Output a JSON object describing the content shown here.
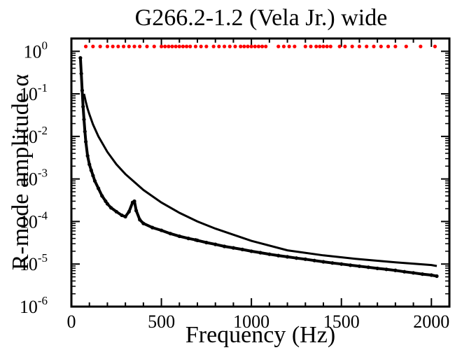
{
  "chart_data": {
    "type": "scatter",
    "title": "G266.2-1.2 (Vela Jr.) wide",
    "xlabel": "Frequency (Hz)",
    "ylabel": "R-mode amplitude α",
    "xlim": [
      0,
      2100
    ],
    "ylim": [
      1e-06,
      2
    ],
    "yscale": "log",
    "grid": false,
    "x_ticks": [
      0,
      500,
      1000,
      1500,
      2000
    ],
    "y_ticks": [
      {
        "value": 1e-06,
        "base": "10",
        "exp": "-6"
      },
      {
        "value": 1e-05,
        "base": "10",
        "exp": "-5"
      },
      {
        "value": 0.0001,
        "base": "10",
        "exp": "-4"
      },
      {
        "value": 0.001,
        "base": "10",
        "exp": "-3"
      },
      {
        "value": 0.01,
        "base": "10",
        "exp": "-2"
      },
      {
        "value": 0.1,
        "base": "10",
        "exp": "-1"
      },
      {
        "value": 1,
        "base": "10",
        "exp": "0"
      }
    ],
    "series": [
      {
        "kind": "upper-limits-points",
        "color": "#000000",
        "x": [
          50,
          55,
          60,
          65,
          70,
          75,
          80,
          90,
          100,
          110,
          120,
          130,
          150,
          170,
          190,
          200,
          220,
          250,
          280,
          300,
          320,
          340,
          350,
          360,
          380,
          400,
          450,
          500,
          550,
          600,
          650,
          690,
          700,
          750,
          800,
          850,
          900,
          950,
          1000,
          1050,
          1100,
          1150,
          1200,
          1250,
          1300,
          1350,
          1400,
          1450,
          1500,
          1550,
          1600,
          1650,
          1700,
          1750,
          1800,
          1850,
          1900,
          1950,
          2000,
          2030
        ],
        "y": [
          0.7,
          0.3,
          0.12,
          0.05,
          0.025,
          0.013,
          0.0075,
          0.0035,
          0.0022,
          0.0016,
          0.0012,
          0.0009,
          0.0006,
          0.0004,
          0.0003,
          0.00026,
          0.00021,
          0.00017,
          0.00014,
          0.00013,
          0.00017,
          0.00028,
          0.0003,
          0.00018,
          0.00011,
          9e-05,
          7.2e-05,
          6.2e-05,
          5.2e-05,
          4.5e-05,
          4e-05,
          3.7e-05,
          3.6e-05,
          3.2e-05,
          2.9e-05,
          2.6e-05,
          2.4e-05,
          2.2e-05,
          2e-05,
          1.85e-05,
          1.7e-05,
          1.58e-05,
          1.48e-05,
          1.38e-05,
          1.3e-05,
          1.21e-05,
          1.13e-05,
          1.06e-05,
          1e-05,
          9.4e-06,
          8.9e-06,
          8.4e-06,
          7.9e-06,
          7.5e-06,
          7.1e-06,
          6.6e-06,
          6.2e-06,
          5.8e-06,
          5.5e-06,
          5.2e-06
        ]
      },
      {
        "kind": "reference-curve",
        "color": "#000000",
        "x": [
          70,
          80,
          90,
          100,
          120,
          150,
          200,
          250,
          300,
          400,
          500,
          600,
          700,
          800,
          1000,
          1200,
          1400,
          1600,
          1800,
          2000,
          2030
        ],
        "y": [
          0.1,
          0.065,
          0.045,
          0.033,
          0.019,
          0.01,
          0.0043,
          0.0022,
          0.0013,
          0.00055,
          0.00028,
          0.00016,
          0.0001,
          6.8e-05,
          3.5e-05,
          2.1e-05,
          1.6e-05,
          1.3e-05,
          1.1e-05,
          9.5e-06,
          9e-06
        ]
      },
      {
        "kind": "vetoed-band-markers",
        "color": "#ff0000",
        "y": 1.3,
        "x": [
          80,
          120,
          160,
          200,
          230,
          260,
          290,
          320,
          350,
          380,
          420,
          460,
          500,
          520,
          540,
          560,
          580,
          600,
          620,
          640,
          660,
          690,
          720,
          750,
          790,
          820,
          850,
          880,
          910,
          940,
          960,
          980,
          1000,
          1020,
          1040,
          1060,
          1080,
          1150,
          1180,
          1210,
          1240,
          1300,
          1330,
          1360,
          1380,
          1400,
          1420,
          1440,
          1490,
          1520,
          1560,
          1600,
          1640,
          1680,
          1720,
          1760,
          1800,
          1860,
          1940,
          2020
        ]
      }
    ]
  }
}
